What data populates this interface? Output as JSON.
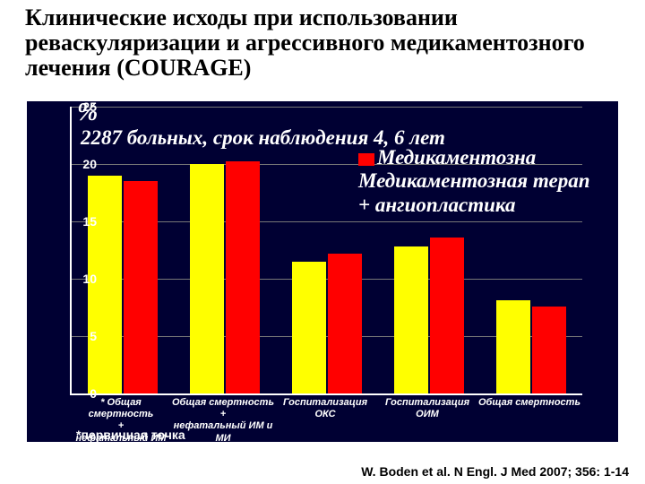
{
  "title": "Клинические исходы при использовании реваскуляризации и агрессивного медикаментозного лечения  (COURAGE)",
  "overlay": {
    "percent": "%",
    "subtitle": "2287 больных, срок наблюдения 4, 6 лет"
  },
  "legend": {
    "series1": {
      "color": "#ff0000",
      "label": "Медикаментозна"
    },
    "series2": {
      "color": "#ffff00",
      "label": "Медикаментозная терап"
    },
    "series3": {
      "label": "+ ангиопластика"
    }
  },
  "chart": {
    "type": "bar",
    "ylim": [
      0,
      25
    ],
    "ytick_step": 5,
    "background": "#000033",
    "bar_colors": [
      "#ffff00",
      "#ff0000"
    ],
    "categories": [
      "* Общая смертность\n+\nнефатальный ИМ",
      "Общая смертность\n+\nнефатальный ИМ и МИ",
      "Госпитализация\nОКС",
      "Госпитализация\nОИМ",
      "Общая смертность"
    ],
    "series": [
      [
        19.0,
        18.5
      ],
      [
        20.0,
        20.2
      ],
      [
        11.5,
        12.2
      ],
      [
        12.8,
        13.6
      ],
      [
        8.1,
        7.6
      ]
    ],
    "primary_note": "*первичная точка"
  },
  "citation": "W. Boden et al. N Engl. J Med 2007; 356: 1-14"
}
